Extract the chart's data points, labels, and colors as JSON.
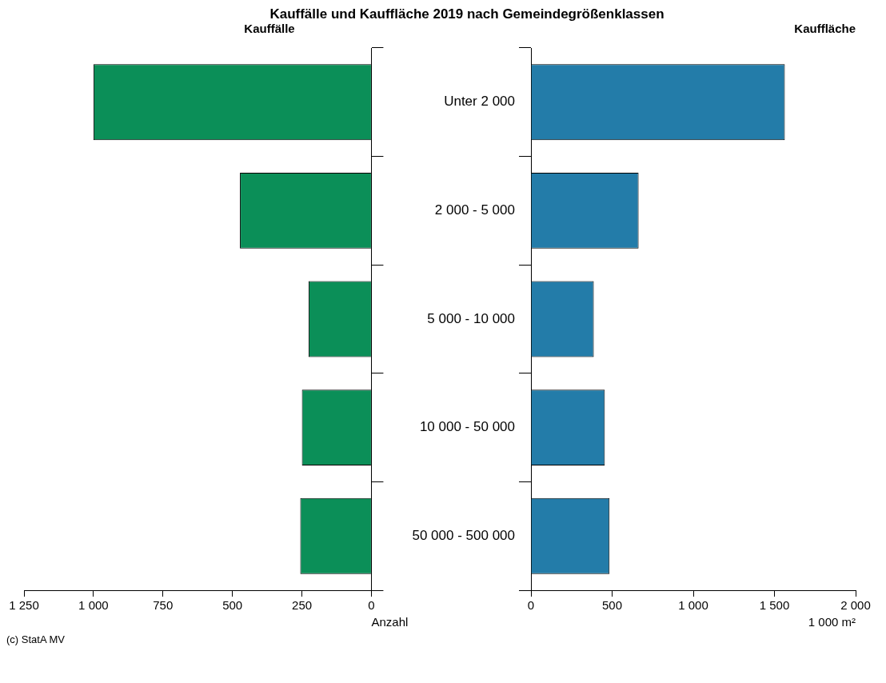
{
  "chart_data": [
    {
      "type": "bar",
      "orientation": "horizontal",
      "title": "Kauffälle und Kauffläche 2019 nach Gemeindegrößenklassen",
      "subtitle": "Kauffälle",
      "xlabel": "Anzahl",
      "categories": [
        "Unter 2 000",
        "2 000 - 5 000",
        "5 000 - 10 000",
        "10 000 - 50 000",
        "50 000 - 500 000"
      ],
      "values": [
        1000,
        473,
        226,
        250,
        256
      ],
      "color": "#0b8f58",
      "xlim": [
        1250,
        0
      ],
      "xticks": [
        {
          "value": 1250,
          "label": "1 250"
        },
        {
          "value": 1000,
          "label": "1 000"
        },
        750,
        500,
        250,
        0
      ],
      "grid": false,
      "annotations": [
        "(c) StatA MV"
      ]
    },
    {
      "type": "bar",
      "orientation": "horizontal",
      "subtitle": "Kauffläche",
      "xlabel": "1 000 m²",
      "categories": [
        null,
        null,
        null,
        null,
        null
      ],
      "values": [
        1564,
        663,
        387,
        455,
        484
      ],
      "color": "#237ca9",
      "xlim": [
        0,
        2000
      ],
      "xticks": [
        0,
        500,
        {
          "value": 1000,
          "label": "1 000"
        },
        {
          "value": 1500,
          "label": "1 500"
        },
        {
          "value": 2000,
          "label": "2 000"
        }
      ],
      "grid": false,
      "tick_labels": "x"
    }
  ]
}
